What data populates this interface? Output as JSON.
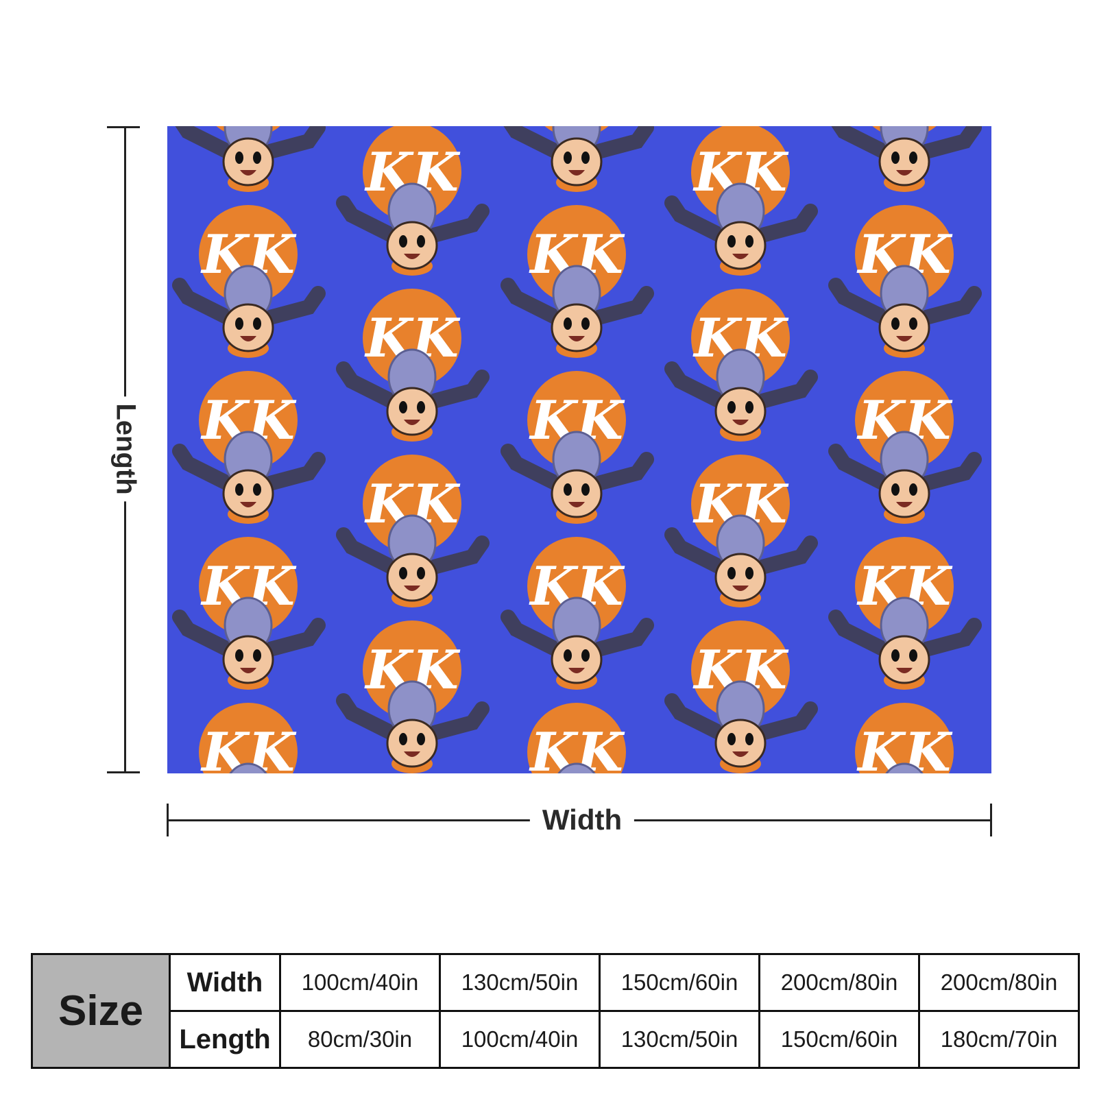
{
  "diagram": {
    "length_label": "Length",
    "width_label": "Width"
  },
  "pattern": {
    "background_color": "#4150dc",
    "badge_color": "#e8812c",
    "badge_text": "KK",
    "character": "cartoon-character-with-cap-and-outstretched-arms"
  },
  "size_table": {
    "title": "Size",
    "width_label": "Width",
    "length_label": "Length",
    "widths": [
      "100cm/40in",
      "130cm/50in",
      "150cm/60in",
      "200cm/80in",
      "200cm/80in"
    ],
    "lengths": [
      "80cm/30in",
      "100cm/40in",
      "130cm/50in",
      "150cm/60in",
      "180cm/70in"
    ]
  }
}
